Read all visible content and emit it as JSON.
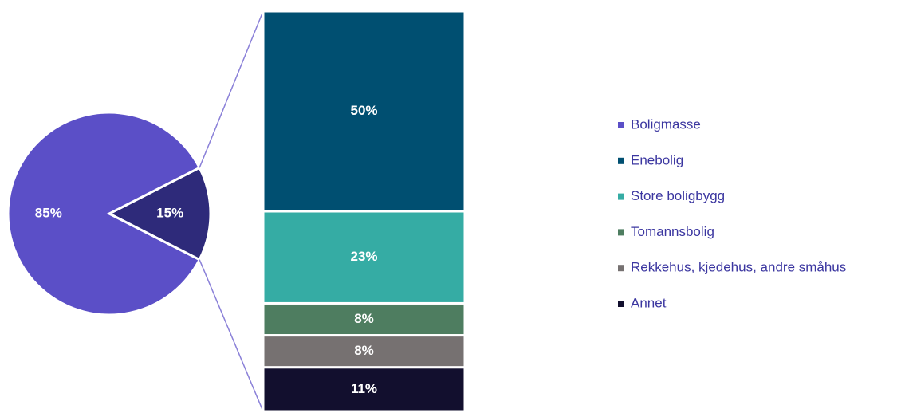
{
  "chart_data": {
    "type": "pie-of-bar",
    "pie": {
      "names": [
        "Boligmasse",
        null
      ],
      "values": [
        85,
        15
      ],
      "value_labels": [
        "85%",
        "15%"
      ],
      "colors": [
        "#5b4fc7",
        "#2e2a7a"
      ]
    },
    "bar": {
      "names": [
        "Enebolig",
        "Store boligbygg",
        "Tomannsbolig",
        "Rekkehus, kjedehus, andre småhus",
        "Annet"
      ],
      "values": [
        50,
        23,
        8,
        8,
        11
      ],
      "value_labels": [
        "50%",
        "23%",
        "8%",
        "8%",
        "11%"
      ],
      "colors": [
        "#004f71",
        "#35aca4",
        "#4e7d60",
        "#767171",
        "#120f2e"
      ]
    },
    "legend": "right"
  }
}
